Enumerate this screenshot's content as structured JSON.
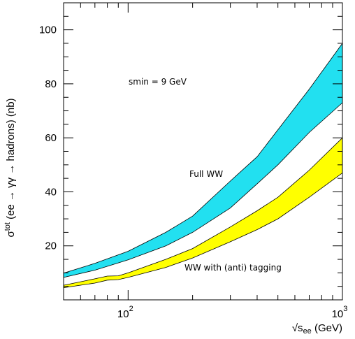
{
  "chart_data": {
    "type": "area",
    "title": "",
    "xlabel_parts": {
      "root": "√s",
      "sub": "ee",
      "rest": " (GeV)"
    },
    "ylabel_parts": {
      "sigma": "σ",
      "sup": "tot",
      "rest": " (ee → γγ → hadrons) (nb)"
    },
    "xscale": "log",
    "xlim": [
      50,
      1000
    ],
    "ylim": [
      0,
      110
    ],
    "x_ticks": [
      {
        "value": 100,
        "base": "10",
        "exp": "2"
      },
      {
        "value": 1000,
        "base": "10",
        "exp": "3"
      }
    ],
    "y_ticks": [
      20,
      40,
      60,
      80,
      100
    ],
    "grid": false,
    "colors": {
      "full_ww": "#22e0f0",
      "tagging": "#ffff00",
      "frame": "#000000"
    },
    "bands": [
      {
        "label": "Full WW",
        "color": "#22e0f0",
        "x": [
          50,
          70,
          100,
          150,
          200,
          300,
          400,
          500,
          700,
          1000
        ],
        "lower": [
          8.3,
          11,
          14.8,
          20,
          25,
          34,
          43,
          50,
          62,
          73
        ],
        "upper": [
          9.9,
          13.5,
          18,
          25,
          31,
          44,
          53,
          63,
          78,
          95
        ]
      },
      {
        "label": "WW with (anti) tagging",
        "color": "#ffff00",
        "x": [
          50,
          70,
          80,
          90,
          100,
          150,
          200,
          300,
          400,
          500,
          700,
          1000
        ],
        "lower": [
          4.5,
          6.2,
          7.3,
          7.5,
          8.3,
          12,
          15.5,
          21.5,
          26,
          30,
          38,
          47
        ],
        "upper": [
          5.4,
          7.8,
          8.8,
          8.9,
          10,
          15,
          19,
          27,
          33,
          38,
          48,
          60
        ]
      }
    ],
    "annotations": {
      "smin": "smin = 9 GeV",
      "full_ww": "Full WW",
      "tagging": "WW with (anti) tagging"
    }
  }
}
